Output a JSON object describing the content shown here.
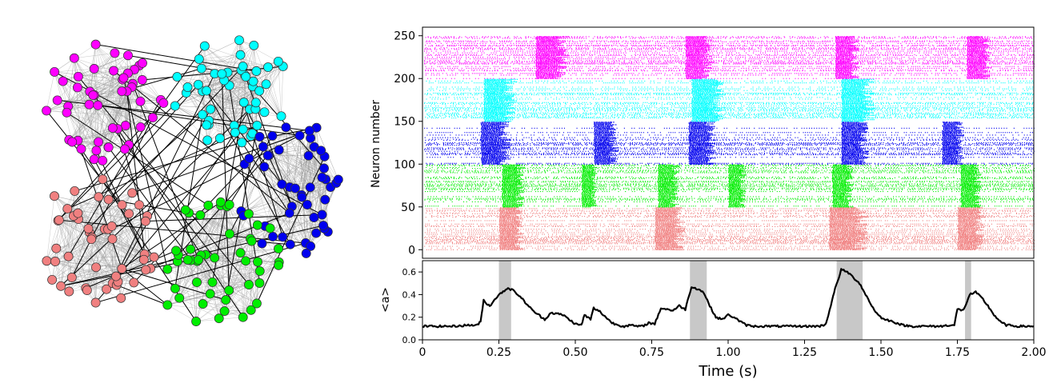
{
  "network": {
    "clusters": [
      {
        "name": "magenta",
        "color": "#ff00ff"
      },
      {
        "name": "cyan",
        "color": "#00ffff"
      },
      {
        "name": "blue",
        "color": "#0000ee"
      },
      {
        "name": "green",
        "color": "#00ee00"
      },
      {
        "name": "salmon",
        "color": "#f08080"
      }
    ]
  },
  "chart_data": [
    {
      "type": "scatter",
      "subtype": "raster",
      "title": "",
      "xlabel": "",
      "ylabel": "Neuron number",
      "xlim": [
        0,
        2.0
      ],
      "ylim": [
        -10,
        260
      ],
      "yticks": [
        0,
        50,
        100,
        150,
        200,
        250
      ],
      "yticklabels": [
        "0",
        "50",
        "100",
        "150",
        "200",
        "250"
      ],
      "groups": [
        {
          "color": "#f08080",
          "neurons": [
            0,
            49
          ],
          "bursts": [
            [
              0.25,
              0.33
            ],
            [
              0.76,
              0.86
            ],
            [
              1.33,
              1.46
            ],
            [
              1.75,
              1.84
            ]
          ]
        },
        {
          "color": "#00ee00",
          "neurons": [
            50,
            99
          ],
          "bursts": [
            [
              0.26,
              0.33
            ],
            [
              0.52,
              0.57
            ],
            [
              0.77,
              0.84
            ],
            [
              1.0,
              1.06
            ],
            [
              1.34,
              1.41
            ],
            [
              1.76,
              1.83
            ]
          ]
        },
        {
          "color": "#0000ee",
          "neurons": [
            100,
            149
          ],
          "bursts": [
            [
              0.19,
              0.29
            ],
            [
              0.56,
              0.64
            ],
            [
              0.87,
              0.96
            ],
            [
              1.37,
              1.46
            ],
            [
              1.7,
              1.77
            ]
          ]
        },
        {
          "color": "#00ffff",
          "neurons": [
            150,
            199
          ],
          "bursts": [
            [
              0.2,
              0.31
            ],
            [
              0.88,
              0.99
            ],
            [
              1.37,
              1.48
            ]
          ]
        },
        {
          "color": "#ff00ff",
          "neurons": [
            200,
            249
          ],
          "bursts": [
            [
              0.37,
              0.48
            ],
            [
              0.86,
              0.95
            ],
            [
              1.35,
              1.43
            ],
            [
              1.78,
              1.86
            ]
          ]
        }
      ]
    },
    {
      "type": "line",
      "title": "",
      "xlabel": "Time (s)",
      "ylabel": "<a>",
      "xlim": [
        0,
        2.0
      ],
      "ylim": [
        0,
        0.7
      ],
      "xticks": [
        0,
        0.25,
        0.5,
        0.75,
        1.0,
        1.25,
        1.5,
        1.75,
        2.0
      ],
      "xticklabels": [
        "0",
        "0.25",
        "0.50",
        "0.75",
        "1.00",
        "1.25",
        "1.50",
        "1.75",
        "2.00"
      ],
      "yticks": [
        0,
        0.2,
        0.4,
        0.6
      ],
      "yticklabels": [
        "0.0",
        "0.2",
        "0.4",
        "0.6"
      ],
      "color": "#000000",
      "shaded_intervals": [
        [
          0.25,
          0.29
        ],
        [
          0.875,
          0.93
        ],
        [
          1.355,
          1.44
        ],
        [
          1.775,
          1.795
        ]
      ],
      "series": [
        {
          "x": [
            0,
            0.05,
            0.1,
            0.15,
            0.18,
            0.19,
            0.2,
            0.21,
            0.22,
            0.24,
            0.26,
            0.28,
            0.3,
            0.32,
            0.34,
            0.36,
            0.38,
            0.4,
            0.42,
            0.44,
            0.46,
            0.48,
            0.5,
            0.52,
            0.53,
            0.55,
            0.56,
            0.58,
            0.6,
            0.62,
            0.64,
            0.66,
            0.68,
            0.7,
            0.72,
            0.74,
            0.76,
            0.78,
            0.8,
            0.82,
            0.84,
            0.86,
            0.88,
            0.9,
            0.92,
            0.94,
            0.96,
            0.98,
            1.0,
            1.02,
            1.04,
            1.06,
            1.08,
            1.1,
            1.15,
            1.2,
            1.25,
            1.3,
            1.32,
            1.34,
            1.35,
            1.37,
            1.39,
            1.41,
            1.43,
            1.45,
            1.47,
            1.49,
            1.51,
            1.53,
            1.55,
            1.57,
            1.6,
            1.65,
            1.7,
            1.72,
            1.74,
            1.75,
            1.77,
            1.79,
            1.81,
            1.83,
            1.85,
            1.87,
            1.89,
            1.91,
            1.95,
            2.0
          ],
          "y": [
            0.12,
            0.12,
            0.12,
            0.13,
            0.13,
            0.16,
            0.35,
            0.32,
            0.3,
            0.37,
            0.42,
            0.46,
            0.43,
            0.38,
            0.32,
            0.26,
            0.22,
            0.18,
            0.24,
            0.23,
            0.22,
            0.18,
            0.14,
            0.13,
            0.22,
            0.18,
            0.28,
            0.25,
            0.2,
            0.15,
            0.13,
            0.12,
            0.13,
            0.12,
            0.12,
            0.15,
            0.14,
            0.28,
            0.27,
            0.26,
            0.3,
            0.27,
            0.47,
            0.45,
            0.42,
            0.3,
            0.2,
            0.18,
            0.22,
            0.2,
            0.16,
            0.13,
            0.12,
            0.12,
            0.12,
            0.12,
            0.12,
            0.12,
            0.14,
            0.35,
            0.45,
            0.62,
            0.6,
            0.55,
            0.5,
            0.4,
            0.3,
            0.22,
            0.18,
            0.17,
            0.15,
            0.13,
            0.12,
            0.12,
            0.12,
            0.13,
            0.13,
            0.27,
            0.26,
            0.4,
            0.42,
            0.37,
            0.3,
            0.22,
            0.16,
            0.13,
            0.12,
            0.12
          ]
        }
      ]
    }
  ]
}
